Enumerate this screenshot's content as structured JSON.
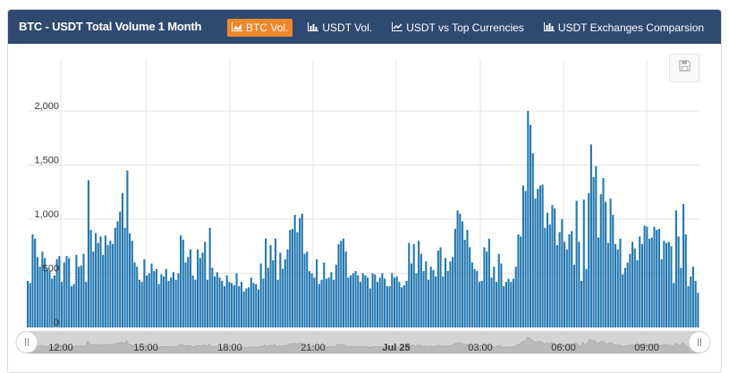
{
  "header": {
    "title": "BTC - USDT Total Volume 1 Month",
    "tabs": [
      {
        "label": "BTC Vol.",
        "icon": "area-chart-icon",
        "active": true
      },
      {
        "label": "USDT Vol.",
        "icon": "bar-chart-icon",
        "active": false
      },
      {
        "label": "USDT vs Top Currencies",
        "icon": "line-chart-icon",
        "active": false
      },
      {
        "label": "USDT Exchanges Comparsion",
        "icon": "bar-chart-icon",
        "active": false
      }
    ]
  },
  "colors": {
    "header_bg": "#2f4a70",
    "active_tab": "#f0872b",
    "bar": "#2378b0",
    "grid": "#e6e6e6",
    "navigator": "#bdbdbd"
  },
  "save_button": {
    "icon": "floppy-disk-icon"
  },
  "chart_data": {
    "type": "bar",
    "title": "",
    "xlabel": "",
    "ylabel": "",
    "ylim": [
      0,
      2000
    ],
    "y_ticks": [
      "0",
      "500",
      "1,000",
      "1,500",
      "2,000"
    ],
    "x_ticks": [
      "12:00",
      "15:00",
      "18:00",
      "21:00",
      "Jul 25",
      "03:00",
      "06:00",
      "09:00"
    ],
    "grid": true,
    "series": [
      {
        "name": "",
        "values": [
          430,
          410,
          860,
          820,
          650,
          560,
          700,
          640,
          540,
          520,
          450,
          480,
          630,
          660,
          420,
          600,
          660,
          640,
          380,
          400,
          670,
          560,
          570,
          680,
          420,
          1360,
          900,
          700,
          870,
          780,
          840,
          670,
          850,
          760,
          800,
          770,
          920,
          980,
          1070,
          1240,
          920,
          1450,
          870,
          800,
          600,
          560,
          440,
          420,
          630,
          480,
          500,
          590,
          520,
          540,
          400,
          490,
          470,
          540,
          430,
          460,
          510,
          440,
          500,
          850,
          810,
          600,
          650,
          720,
          480,
          440,
          720,
          640,
          690,
          790,
          440,
          920,
          550,
          470,
          510,
          460,
          430,
          380,
          480,
          420,
          410,
          390,
          500,
          380,
          420,
          330,
          360,
          370,
          460,
          410,
          400,
          350,
          590,
          450,
          820,
          550,
          760,
          620,
          820,
          440,
          690,
          540,
          630,
          720,
          900,
          910,
          1040,
          880,
          1010,
          1050,
          680,
          700,
          520,
          500,
          460,
          630,
          400,
          440,
          600,
          450,
          460,
          510,
          440,
          580,
          770,
          800,
          820,
          700,
          460,
          480,
          500,
          520,
          480,
          420,
          500,
          480,
          460,
          360,
          500,
          490,
          420,
          460,
          500,
          450,
          380,
          380,
          500,
          460,
          470,
          420,
          370,
          390,
          430,
          780,
          590,
          770,
          500,
          800,
          680,
          520,
          610,
          440,
          560,
          530,
          470,
          710,
          740,
          470,
          640,
          520,
          610,
          650,
          910,
          1080,
          1050,
          980,
          810,
          900,
          740,
          600,
          540,
          520,
          420,
          430,
          740,
          700,
          820,
          460,
          560,
          420,
          680,
          590,
          380,
          420,
          450,
          420,
          450,
          560,
          860,
          840,
          1310,
          1260,
          2000,
          1870,
          1610,
          1190,
          1280,
          1310,
          1320,
          920,
          1060,
          950,
          1130,
          1100,
          760,
          880,
          1000,
          790,
          720,
          860,
          890,
          580,
          1170,
          790,
          430,
          1180,
          540,
          1240,
          1690,
          1390,
          1490,
          830,
          1230,
          1380,
          1160,
          780,
          1190,
          1040,
          770,
          720,
          820,
          490,
          550,
          600,
          680,
          790,
          730,
          620,
          840,
          770,
          940,
          930,
          820,
          830,
          930,
          900,
          910,
          630,
          800,
          780,
          790,
          750,
          410,
          1080,
          840,
          550,
          1140,
          860,
          380,
          470,
          560,
          430,
          320
        ]
      }
    ]
  }
}
